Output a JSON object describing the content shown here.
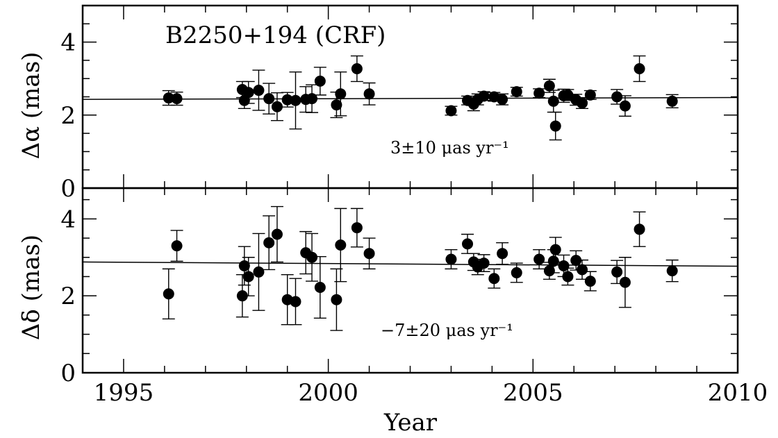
{
  "chart_data": [
    {
      "type": "scatter",
      "panel": "top",
      "title": "B2250+194 (CRF)",
      "ylabel": "Δα (mas)",
      "ylim": [
        0,
        5
      ],
      "yticks": [
        0,
        2,
        4
      ],
      "xlim": [
        1994,
        2010
      ],
      "annotation": "3±10 μas yr⁻¹",
      "fit": {
        "x": [
          1994,
          2010
        ],
        "y": [
          2.43,
          2.48
        ]
      },
      "points": [
        {
          "x": 1996.1,
          "y": 2.47,
          "err": 0.2
        },
        {
          "x": 1996.3,
          "y": 2.45,
          "err": 0.18
        },
        {
          "x": 1997.9,
          "y": 2.7,
          "err": 0.22
        },
        {
          "x": 1997.95,
          "y": 2.4,
          "err": 0.22
        },
        {
          "x": 1998.05,
          "y": 2.62,
          "err": 0.3
        },
        {
          "x": 1998.3,
          "y": 2.68,
          "err": 0.55
        },
        {
          "x": 1998.55,
          "y": 2.45,
          "err": 0.42
        },
        {
          "x": 1998.75,
          "y": 2.23,
          "err": 0.38
        },
        {
          "x": 1999.0,
          "y": 2.42,
          "err": 0.2
        },
        {
          "x": 1999.2,
          "y": 2.4,
          "err": 0.78
        },
        {
          "x": 1999.45,
          "y": 2.43,
          "err": 0.35
        },
        {
          "x": 1999.6,
          "y": 2.45,
          "err": 0.38
        },
        {
          "x": 1999.8,
          "y": 2.93,
          "err": 0.38
        },
        {
          "x": 2000.2,
          "y": 2.28,
          "err": 0.35
        },
        {
          "x": 2000.3,
          "y": 2.58,
          "err": 0.6
        },
        {
          "x": 2000.7,
          "y": 3.27,
          "err": 0.35
        },
        {
          "x": 2001.0,
          "y": 2.58,
          "err": 0.3
        },
        {
          "x": 2003.0,
          "y": 2.12,
          "err": 0.12
        },
        {
          "x": 2003.4,
          "y": 2.4,
          "err": 0.12
        },
        {
          "x": 2003.55,
          "y": 2.3,
          "err": 0.18
        },
        {
          "x": 2003.65,
          "y": 2.43,
          "err": 0.15
        },
        {
          "x": 2003.8,
          "y": 2.52,
          "err": 0.12
        },
        {
          "x": 2004.05,
          "y": 2.5,
          "err": 0.12
        },
        {
          "x": 2004.25,
          "y": 2.43,
          "err": 0.15
        },
        {
          "x": 2004.6,
          "y": 2.64,
          "err": 0.12
        },
        {
          "x": 2005.15,
          "y": 2.6,
          "err": 0.12
        },
        {
          "x": 2005.4,
          "y": 2.8,
          "err": 0.18
        },
        {
          "x": 2005.5,
          "y": 2.38,
          "err": 0.3
        },
        {
          "x": 2005.55,
          "y": 1.7,
          "err": 0.38
        },
        {
          "x": 2005.75,
          "y": 2.53,
          "err": 0.18
        },
        {
          "x": 2005.85,
          "y": 2.55,
          "err": 0.15
        },
        {
          "x": 2006.05,
          "y": 2.42,
          "err": 0.15
        },
        {
          "x": 2006.2,
          "y": 2.33,
          "err": 0.15
        },
        {
          "x": 2006.4,
          "y": 2.55,
          "err": 0.12
        },
        {
          "x": 2007.05,
          "y": 2.5,
          "err": 0.2
        },
        {
          "x": 2007.25,
          "y": 2.25,
          "err": 0.28
        },
        {
          "x": 2007.6,
          "y": 3.27,
          "err": 0.35
        },
        {
          "x": 2008.4,
          "y": 2.38,
          "err": 0.18
        }
      ]
    },
    {
      "type": "scatter",
      "panel": "bottom",
      "title": "",
      "ylabel": "Δδ (mas)",
      "xlabel": "Year",
      "ylim": [
        0,
        4.8
      ],
      "yticks": [
        0,
        2,
        4
      ],
      "xlim": [
        1994,
        2010
      ],
      "xticks": [
        1995,
        2000,
        2005,
        2010
      ],
      "annotation": "−7±20 μas yr⁻¹",
      "fit": {
        "x": [
          1994,
          2010
        ],
        "y": [
          2.88,
          2.77
        ]
      },
      "points": [
        {
          "x": 1996.1,
          "y": 2.05,
          "err": 0.65
        },
        {
          "x": 1996.3,
          "y": 3.3,
          "err": 0.4
        },
        {
          "x": 1997.9,
          "y": 2.0,
          "err": 0.55
        },
        {
          "x": 1997.95,
          "y": 2.78,
          "err": 0.5
        },
        {
          "x": 1998.05,
          "y": 2.5,
          "err": 0.5
        },
        {
          "x": 1998.3,
          "y": 2.62,
          "err": 1.0
        },
        {
          "x": 1998.55,
          "y": 3.38,
          "err": 0.7
        },
        {
          "x": 1998.75,
          "y": 3.6,
          "err": 0.72
        },
        {
          "x": 1999.0,
          "y": 1.9,
          "err": 0.65
        },
        {
          "x": 1999.2,
          "y": 1.85,
          "err": 0.6
        },
        {
          "x": 1999.45,
          "y": 3.12,
          "err": 0.55
        },
        {
          "x": 1999.6,
          "y": 3.0,
          "err": 0.62
        },
        {
          "x": 1999.8,
          "y": 2.22,
          "err": 0.8
        },
        {
          "x": 2000.2,
          "y": 1.9,
          "err": 0.8
        },
        {
          "x": 2000.3,
          "y": 3.32,
          "err": 0.95
        },
        {
          "x": 2000.7,
          "y": 3.77,
          "err": 0.5
        },
        {
          "x": 2001.0,
          "y": 3.1,
          "err": 0.4
        },
        {
          "x": 2003.0,
          "y": 2.95,
          "err": 0.25
        },
        {
          "x": 2003.4,
          "y": 3.35,
          "err": 0.25
        },
        {
          "x": 2003.55,
          "y": 2.88,
          "err": 0.22
        },
        {
          "x": 2003.65,
          "y": 2.75,
          "err": 0.2
        },
        {
          "x": 2003.8,
          "y": 2.85,
          "err": 0.22
        },
        {
          "x": 2004.05,
          "y": 2.45,
          "err": 0.25
        },
        {
          "x": 2004.25,
          "y": 3.1,
          "err": 0.28
        },
        {
          "x": 2004.6,
          "y": 2.6,
          "err": 0.25
        },
        {
          "x": 2005.15,
          "y": 2.95,
          "err": 0.25
        },
        {
          "x": 2005.4,
          "y": 2.65,
          "err": 0.22
        },
        {
          "x": 2005.5,
          "y": 2.9,
          "err": 0.3
        },
        {
          "x": 2005.55,
          "y": 3.2,
          "err": 0.32
        },
        {
          "x": 2005.75,
          "y": 2.78,
          "err": 0.28
        },
        {
          "x": 2005.85,
          "y": 2.5,
          "err": 0.22
        },
        {
          "x": 2006.05,
          "y": 2.92,
          "err": 0.25
        },
        {
          "x": 2006.2,
          "y": 2.68,
          "err": 0.25
        },
        {
          "x": 2006.4,
          "y": 2.38,
          "err": 0.25
        },
        {
          "x": 2007.05,
          "y": 2.62,
          "err": 0.3
        },
        {
          "x": 2007.25,
          "y": 2.35,
          "err": 0.65
        },
        {
          "x": 2007.6,
          "y": 3.73,
          "err": 0.45
        },
        {
          "x": 2008.4,
          "y": 2.65,
          "err": 0.28
        }
      ]
    }
  ]
}
